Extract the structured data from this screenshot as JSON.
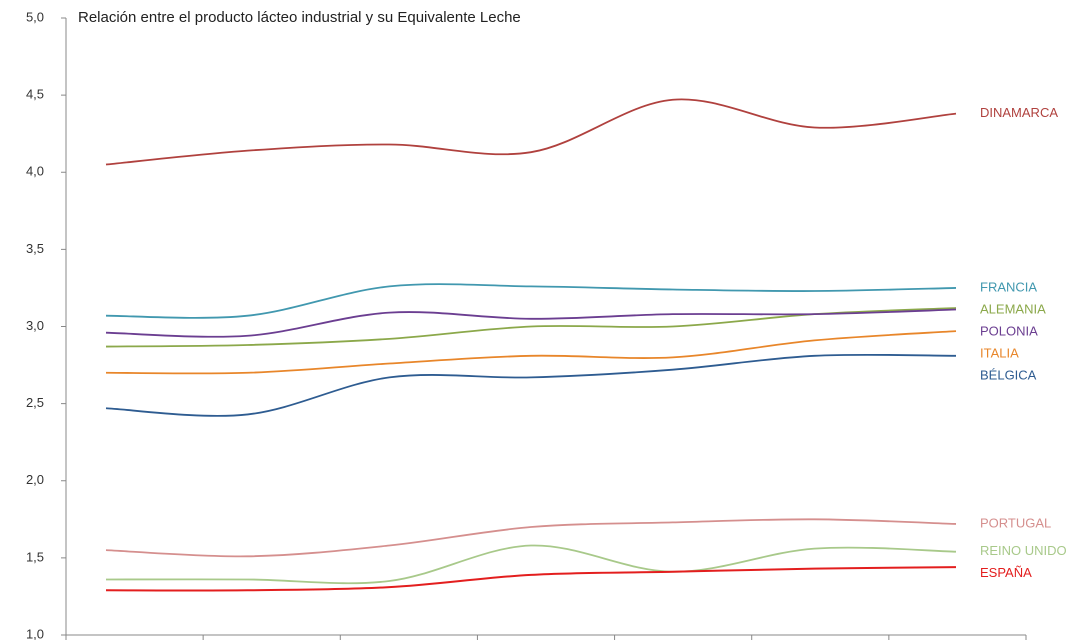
{
  "chart_data": {
    "type": "line",
    "subtitle": "Relación entre el producto lácteo industrial y su Equivalente Leche",
    "categories": [
      null,
      null,
      null,
      null,
      null,
      null,
      null
    ],
    "ylim": [
      1,
      5
    ],
    "yticks": [
      {
        "value": 1,
        "label": "1,0"
      },
      {
        "value": 1.5,
        "label": "1,5"
      },
      {
        "value": 2,
        "label": "2,0"
      },
      {
        "value": 2.5,
        "label": "2,5"
      },
      {
        "value": 3,
        "label": "3,0"
      },
      {
        "value": 3.5,
        "label": "3,5"
      },
      {
        "value": 4,
        "label": "4,0"
      },
      {
        "value": 4.5,
        "label": "4,5"
      },
      {
        "value": 5,
        "label": "5,0"
      }
    ],
    "series": [
      {
        "name": "DINAMARCA",
        "color": "#b0413e",
        "values": [
          4.05,
          4.14,
          4.18,
          4.13,
          4.47,
          4.29,
          4.38
        ]
      },
      {
        "name": "FRANCIA",
        "color": "#4198af",
        "values": [
          3.07,
          3.07,
          3.26,
          3.26,
          3.24,
          3.23,
          3.25
        ]
      },
      {
        "name": "ALEMANIA",
        "color": "#8ba84a",
        "values": [
          2.87,
          2.88,
          2.92,
          3.0,
          3.0,
          3.08,
          3.12
        ]
      },
      {
        "name": "POLONIA",
        "color": "#6b3e91",
        "values": [
          2.96,
          2.94,
          3.09,
          3.05,
          3.08,
          3.08,
          3.11
        ]
      },
      {
        "name": "ITALIA",
        "color": "#e8862a",
        "values": [
          2.7,
          2.7,
          2.76,
          2.81,
          2.8,
          2.91,
          2.97
        ]
      },
      {
        "name": "BÉLGICA",
        "color": "#2e5c91",
        "values": [
          2.47,
          2.43,
          2.67,
          2.67,
          2.72,
          2.81,
          2.81
        ]
      },
      {
        "name": "PORTUGAL",
        "color": "#d58f8e",
        "values": [
          1.55,
          1.51,
          1.58,
          1.7,
          1.73,
          1.75,
          1.72
        ]
      },
      {
        "name": "REINO UNIDO",
        "color": "#a8c98a",
        "values": [
          1.36,
          1.36,
          1.35,
          1.58,
          1.41,
          1.56,
          1.54
        ]
      },
      {
        "name": "ESPAÑA",
        "color": "#e31e1e",
        "values": [
          1.29,
          1.29,
          1.31,
          1.39,
          1.41,
          1.43,
          1.44
        ]
      }
    ]
  }
}
